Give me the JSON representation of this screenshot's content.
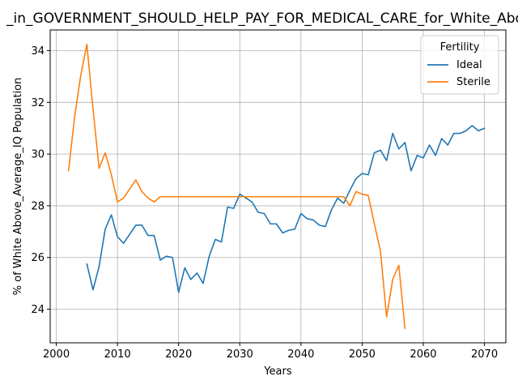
{
  "chart_data": {
    "type": "line",
    "title": "_in_GOVERNMENT_SHOULD_HELP_PAY_FOR_MEDICAL_CARE_for_White_Above_",
    "xlabel": "Years",
    "ylabel": "% of White Above_Average_IQ Population",
    "xlim": [
      1999,
      2073.5
    ],
    "ylim": [
      22.7,
      34.8
    ],
    "xticks": [
      2000,
      2010,
      2020,
      2030,
      2040,
      2050,
      2060,
      2070
    ],
    "yticks": [
      24,
      26,
      28,
      30,
      32,
      34
    ],
    "grid": true,
    "legend": {
      "title": "Fertility",
      "placement": "top-right"
    },
    "series": [
      {
        "name": "Ideal",
        "color": "#1f77b4",
        "x": [
          2005,
          2006,
          2007,
          2008,
          2009,
          2010,
          2011,
          2012,
          2013,
          2014,
          2015,
          2016,
          2017,
          2018,
          2019,
          2020,
          2021,
          2022,
          2023,
          2024,
          2025,
          2026,
          2027,
          2028,
          2029,
          2030,
          2031,
          2032,
          2033,
          2034,
          2035,
          2036,
          2037,
          2038,
          2039,
          2040,
          2041,
          2042,
          2043,
          2044,
          2045,
          2046,
          2047,
          2048,
          2049,
          2050,
          2051,
          2052,
          2053,
          2054,
          2055,
          2056,
          2057,
          2058,
          2059,
          2060,
          2061,
          2062,
          2063,
          2064,
          2065,
          2066,
          2067,
          2068,
          2069,
          2070
        ],
        "y": [
          25.75,
          24.75,
          25.65,
          27.1,
          27.65,
          26.8,
          26.55,
          26.9,
          27.25,
          27.25,
          26.85,
          26.85,
          25.9,
          26.05,
          26.0,
          24.65,
          25.6,
          25.15,
          25.4,
          25.0,
          26.05,
          26.7,
          26.6,
          27.95,
          27.9,
          28.45,
          28.3,
          28.15,
          27.75,
          27.7,
          27.3,
          27.3,
          26.95,
          27.05,
          27.1,
          27.7,
          27.5,
          27.45,
          27.25,
          27.2,
          27.85,
          28.3,
          28.1,
          28.6,
          29.05,
          29.25,
          29.2,
          30.05,
          30.15,
          29.75,
          30.8,
          30.2,
          30.45,
          29.35,
          29.95,
          29.85,
          30.35,
          29.95,
          30.6,
          30.35,
          30.8,
          30.8,
          30.9,
          31.1,
          30.9,
          31.0
        ]
      },
      {
        "name": "Sterile",
        "color": "#ff7f0e",
        "x": [
          2002,
          2003,
          2004,
          2005,
          2006,
          2007,
          2008,
          2009,
          2010,
          2011,
          2012,
          2013,
          2014,
          2015,
          2016,
          2017,
          2018,
          2019,
          2020,
          2021,
          2022,
          2023,
          2024,
          2025,
          2026,
          2027,
          2028,
          2029,
          2030,
          2031,
          2032,
          2033,
          2034,
          2035,
          2036,
          2037,
          2038,
          2039,
          2040,
          2041,
          2042,
          2043,
          2044,
          2045,
          2046,
          2047,
          2048,
          2049,
          2050,
          2051,
          2052,
          2053,
          2054,
          2055,
          2056,
          2057
        ],
        "y": [
          29.35,
          31.45,
          33.05,
          34.25,
          31.75,
          29.45,
          30.05,
          29.2,
          28.15,
          28.3,
          28.65,
          29.0,
          28.55,
          28.3,
          28.15,
          28.35,
          28.35,
          28.35,
          28.35,
          28.35,
          28.35,
          28.35,
          28.35,
          28.35,
          28.35,
          28.35,
          28.35,
          28.35,
          28.35,
          28.35,
          28.35,
          28.35,
          28.35,
          28.35,
          28.35,
          28.35,
          28.35,
          28.35,
          28.35,
          28.35,
          28.35,
          28.35,
          28.35,
          28.35,
          28.35,
          28.35,
          28.0,
          28.55,
          28.45,
          28.4,
          27.3,
          26.25,
          23.7,
          25.15,
          25.7,
          23.25
        ]
      }
    ]
  }
}
